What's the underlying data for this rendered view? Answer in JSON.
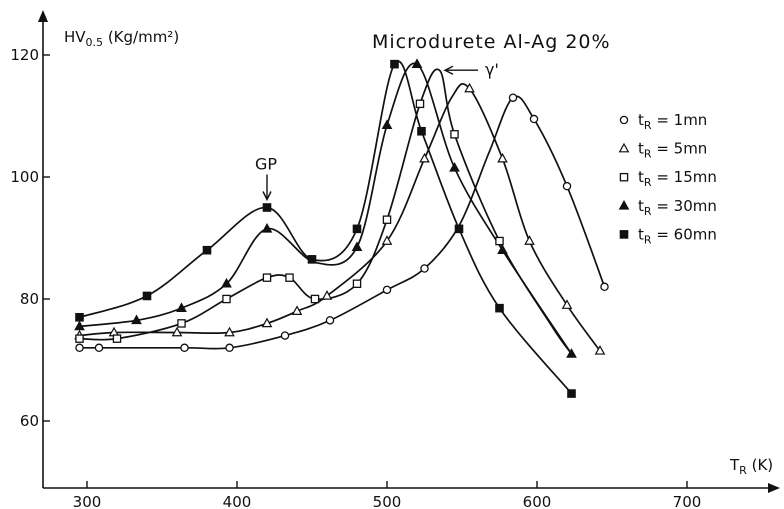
{
  "chart_data": {
    "type": "line",
    "title": "Microdurete Al-Ag 20%",
    "ylabel": "HV0.5 (Kg/mm²)",
    "xlabel": "TR (K)",
    "ylabel_parts": {
      "main": "HV",
      "sub": "0.5",
      "rest": " (Kg/mm²)"
    },
    "xlabel_parts": {
      "main": "T",
      "sub": "R",
      "rest": " (K)"
    },
    "xlim": [
      290,
      750
    ],
    "ylim": [
      52,
      123
    ],
    "xticks": [
      300,
      400,
      500,
      600,
      700
    ],
    "yticks": [
      60,
      80,
      100,
      120
    ],
    "legend_position": "right",
    "annotations": [
      {
        "text": "GP",
        "x": 420,
        "y": 95
      },
      {
        "text": "γ'",
        "x": 538,
        "y": 118
      }
    ],
    "series": [
      {
        "name": "tR = 1mn",
        "legend": {
          "t": "t",
          "sub": "R",
          "rest": " =  1mn"
        },
        "marker": "circle-open",
        "x": [
          295,
          308,
          365,
          395,
          432,
          462,
          500,
          525,
          548,
          568,
          584,
          598,
          620,
          645
        ],
        "y": [
          72,
          72,
          72,
          72,
          74,
          76.5,
          81.5,
          85,
          92,
          104,
          113,
          109.5,
          98.5,
          82
        ],
        "marked": [
          true,
          true,
          true,
          true,
          true,
          true,
          true,
          true,
          false,
          false,
          true,
          true,
          true,
          true
        ]
      },
      {
        "name": "tR = 5mn",
        "legend": {
          "t": "t",
          "sub": "R",
          "rest": " =  5mn"
        },
        "marker": "triangle-open",
        "x": [
          295,
          318,
          360,
          395,
          420,
          440,
          460,
          500,
          525,
          543,
          555,
          577,
          595,
          620,
          642
        ],
        "y": [
          74,
          74.5,
          74.5,
          74.5,
          76,
          78,
          80.5,
          89.5,
          103,
          113,
          114.5,
          103,
          89.5,
          79,
          71.5
        ],
        "marked": [
          true,
          true,
          true,
          true,
          true,
          true,
          true,
          true,
          true,
          false,
          true,
          true,
          true,
          true,
          true
        ]
      },
      {
        "name": "tR = 15mn",
        "legend": {
          "t": "t",
          "sub": "R",
          "rest": " =  15mn"
        },
        "marker": "square-open",
        "x": [
          295,
          320,
          363,
          393,
          420,
          435,
          452,
          480,
          500,
          522,
          535,
          545,
          575,
          610,
          623
        ],
        "y": [
          73.5,
          73.5,
          76,
          80,
          83.5,
          83.5,
          80,
          82.5,
          93,
          112,
          117.5,
          107,
          89.5,
          75.5,
          71
        ],
        "marked": [
          true,
          true,
          true,
          true,
          true,
          true,
          true,
          true,
          true,
          true,
          false,
          true,
          true,
          false,
          false
        ]
      },
      {
        "name": "tR = 30mn",
        "legend": {
          "t": "t",
          "sub": "R",
          "rest": " =  30mn"
        },
        "marker": "triangle-filled",
        "x": [
          295,
          333,
          363,
          393,
          420,
          452,
          480,
          500,
          520,
          545,
          577,
          623
        ],
        "y": [
          75.5,
          76.5,
          78.5,
          82.5,
          91.5,
          86,
          88.5,
          108.5,
          118.5,
          101.5,
          88,
          71
        ],
        "marked": [
          true,
          true,
          true,
          true,
          true,
          false,
          true,
          true,
          true,
          true,
          true,
          true
        ]
      },
      {
        "name": "tR = 60mn",
        "legend": {
          "t": "t",
          "sub": "R",
          "rest": " =  60mn"
        },
        "marker": "square-filled",
        "x": [
          295,
          340,
          380,
          420,
          450,
          480,
          505,
          523,
          548,
          575,
          623
        ],
        "y": [
          77,
          80.5,
          88,
          95,
          86.5,
          91.5,
          118.5,
          107.5,
          91.5,
          78.5,
          64.5
        ],
        "marked": [
          true,
          true,
          true,
          true,
          true,
          true,
          true,
          true,
          true,
          true,
          true
        ]
      }
    ]
  }
}
